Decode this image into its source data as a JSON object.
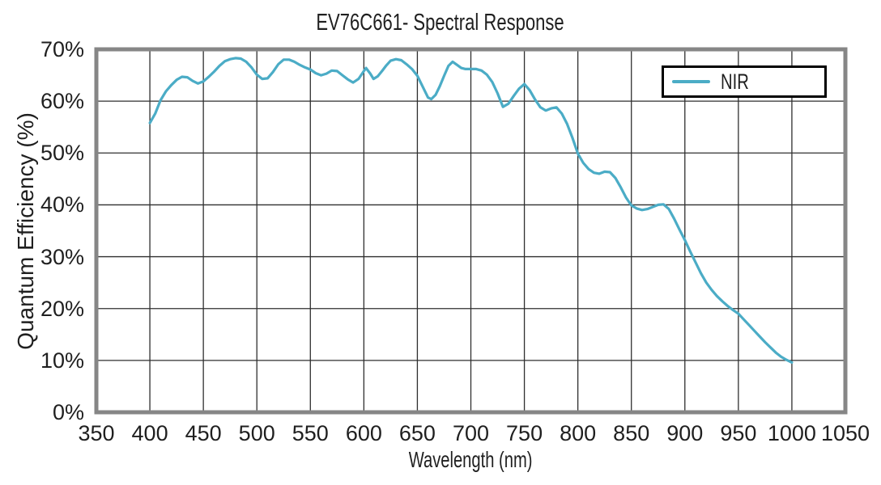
{
  "colors": {
    "background": "#ffffff",
    "plot_border": "#868686",
    "gridline": "#2f2f2f",
    "text": "#1f1f1f",
    "legend_border": "#000000",
    "series_nir": "#4BACC6"
  },
  "chart_data": {
    "type": "line",
    "title": "EV76C661- Spectral Response",
    "xlabel": "Wavelength (nm)",
    "ylabel": "Quantum Efficiency (%)",
    "xlim": [
      350,
      1050
    ],
    "ylim": [
      0,
      70
    ],
    "grid": true,
    "x_ticks": [
      {
        "v": 350,
        "l": "350"
      },
      {
        "v": 400,
        "l": "400"
      },
      {
        "v": 450,
        "l": "450"
      },
      {
        "v": 500,
        "l": "500"
      },
      {
        "v": 550,
        "l": "550"
      },
      {
        "v": 600,
        "l": "600"
      },
      {
        "v": 650,
        "l": "650"
      },
      {
        "v": 700,
        "l": "700"
      },
      {
        "v": 750,
        "l": "750"
      },
      {
        "v": 800,
        "l": "800"
      },
      {
        "v": 850,
        "l": "850"
      },
      {
        "v": 900,
        "l": "900"
      },
      {
        "v": 950,
        "l": "950"
      },
      {
        "v": 1000,
        "l": "1000"
      },
      {
        "v": 1050,
        "l": "1050"
      }
    ],
    "y_ticks": [
      {
        "v": 0,
        "l": "0%"
      },
      {
        "v": 10,
        "l": "10%"
      },
      {
        "v": 20,
        "l": "20%"
      },
      {
        "v": 30,
        "l": "30%"
      },
      {
        "v": 40,
        "l": "40%"
      },
      {
        "v": 50,
        "l": "50%"
      },
      {
        "v": 60,
        "l": "60%"
      },
      {
        "v": 70,
        "l": "70%"
      }
    ],
    "legend": {
      "position": "top-right",
      "entries": [
        {
          "label": "NIR",
          "color": "#4BACC6"
        }
      ]
    },
    "series": [
      {
        "name": "NIR",
        "color": "#4BACC6",
        "line_width": 3.2,
        "points": [
          [
            400,
            55.8
          ],
          [
            405,
            57.6
          ],
          [
            410,
            60.2
          ],
          [
            415,
            61.9
          ],
          [
            420,
            63.1
          ],
          [
            425,
            64.1
          ],
          [
            430,
            64.7
          ],
          [
            435,
            64.6
          ],
          [
            440,
            63.9
          ],
          [
            445,
            63.4
          ],
          [
            450,
            63.8
          ],
          [
            455,
            64.7
          ],
          [
            460,
            65.7
          ],
          [
            465,
            66.8
          ],
          [
            470,
            67.7
          ],
          [
            475,
            68.1
          ],
          [
            480,
            68.3
          ],
          [
            485,
            68.2
          ],
          [
            490,
            67.6
          ],
          [
            495,
            66.5
          ],
          [
            500,
            65.1
          ],
          [
            505,
            64.3
          ],
          [
            510,
            64.4
          ],
          [
            515,
            65.6
          ],
          [
            520,
            67.1
          ],
          [
            525,
            68.0
          ],
          [
            530,
            68.0
          ],
          [
            535,
            67.6
          ],
          [
            540,
            67.0
          ],
          [
            545,
            66.5
          ],
          [
            550,
            66.1
          ],
          [
            555,
            65.4
          ],
          [
            560,
            65.0
          ],
          [
            565,
            65.3
          ],
          [
            570,
            65.9
          ],
          [
            575,
            65.8
          ],
          [
            580,
            65.0
          ],
          [
            585,
            64.2
          ],
          [
            590,
            63.6
          ],
          [
            595,
            64.3
          ],
          [
            600,
            65.8
          ],
          [
            602,
            66.4
          ],
          [
            606,
            65.3
          ],
          [
            609,
            64.3
          ],
          [
            613,
            64.8
          ],
          [
            617,
            65.8
          ],
          [
            621,
            66.9
          ],
          [
            625,
            67.8
          ],
          [
            630,
            68.1
          ],
          [
            635,
            67.9
          ],
          [
            640,
            67.1
          ],
          [
            645,
            66.2
          ],
          [
            650,
            64.9
          ],
          [
            655,
            62.8
          ],
          [
            660,
            60.7
          ],
          [
            663,
            60.4
          ],
          [
            667,
            61.2
          ],
          [
            671,
            62.9
          ],
          [
            675,
            64.9
          ],
          [
            679,
            66.8
          ],
          [
            683,
            67.6
          ],
          [
            687,
            67.0
          ],
          [
            691,
            66.4
          ],
          [
            695,
            66.2
          ],
          [
            700,
            66.2
          ],
          [
            705,
            66.2
          ],
          [
            710,
            65.9
          ],
          [
            715,
            65.1
          ],
          [
            720,
            63.7
          ],
          [
            725,
            61.5
          ],
          [
            730,
            58.9
          ],
          [
            735,
            59.5
          ],
          [
            740,
            61.0
          ],
          [
            745,
            62.4
          ],
          [
            750,
            63.3
          ],
          [
            755,
            62.1
          ],
          [
            760,
            60.3
          ],
          [
            765,
            58.8
          ],
          [
            770,
            58.2
          ],
          [
            775,
            58.6
          ],
          [
            780,
            58.8
          ],
          [
            785,
            57.6
          ],
          [
            790,
            55.6
          ],
          [
            795,
            52.9
          ],
          [
            800,
            49.9
          ],
          [
            805,
            48.1
          ],
          [
            810,
            46.9
          ],
          [
            815,
            46.2
          ],
          [
            820,
            46.0
          ],
          [
            825,
            46.4
          ],
          [
            830,
            46.3
          ],
          [
            835,
            45.2
          ],
          [
            840,
            43.4
          ],
          [
            845,
            41.4
          ],
          [
            850,
            39.9
          ],
          [
            855,
            39.3
          ],
          [
            860,
            39.0
          ],
          [
            865,
            39.2
          ],
          [
            870,
            39.6
          ],
          [
            875,
            40.0
          ],
          [
            880,
            40.1
          ],
          [
            885,
            39.2
          ],
          [
            890,
            37.3
          ],
          [
            895,
            35.2
          ],
          [
            900,
            33.2
          ],
          [
            905,
            31.0
          ],
          [
            910,
            28.9
          ],
          [
            915,
            26.8
          ],
          [
            920,
            25.0
          ],
          [
            925,
            23.6
          ],
          [
            930,
            22.4
          ],
          [
            935,
            21.4
          ],
          [
            940,
            20.5
          ],
          [
            945,
            19.7
          ],
          [
            950,
            19.0
          ],
          [
            955,
            17.9
          ],
          [
            960,
            16.8
          ],
          [
            965,
            15.7
          ],
          [
            970,
            14.6
          ],
          [
            975,
            13.5
          ],
          [
            980,
            12.5
          ],
          [
            985,
            11.5
          ],
          [
            990,
            10.7
          ],
          [
            995,
            10.1
          ],
          [
            1000,
            9.6
          ]
        ]
      }
    ]
  }
}
